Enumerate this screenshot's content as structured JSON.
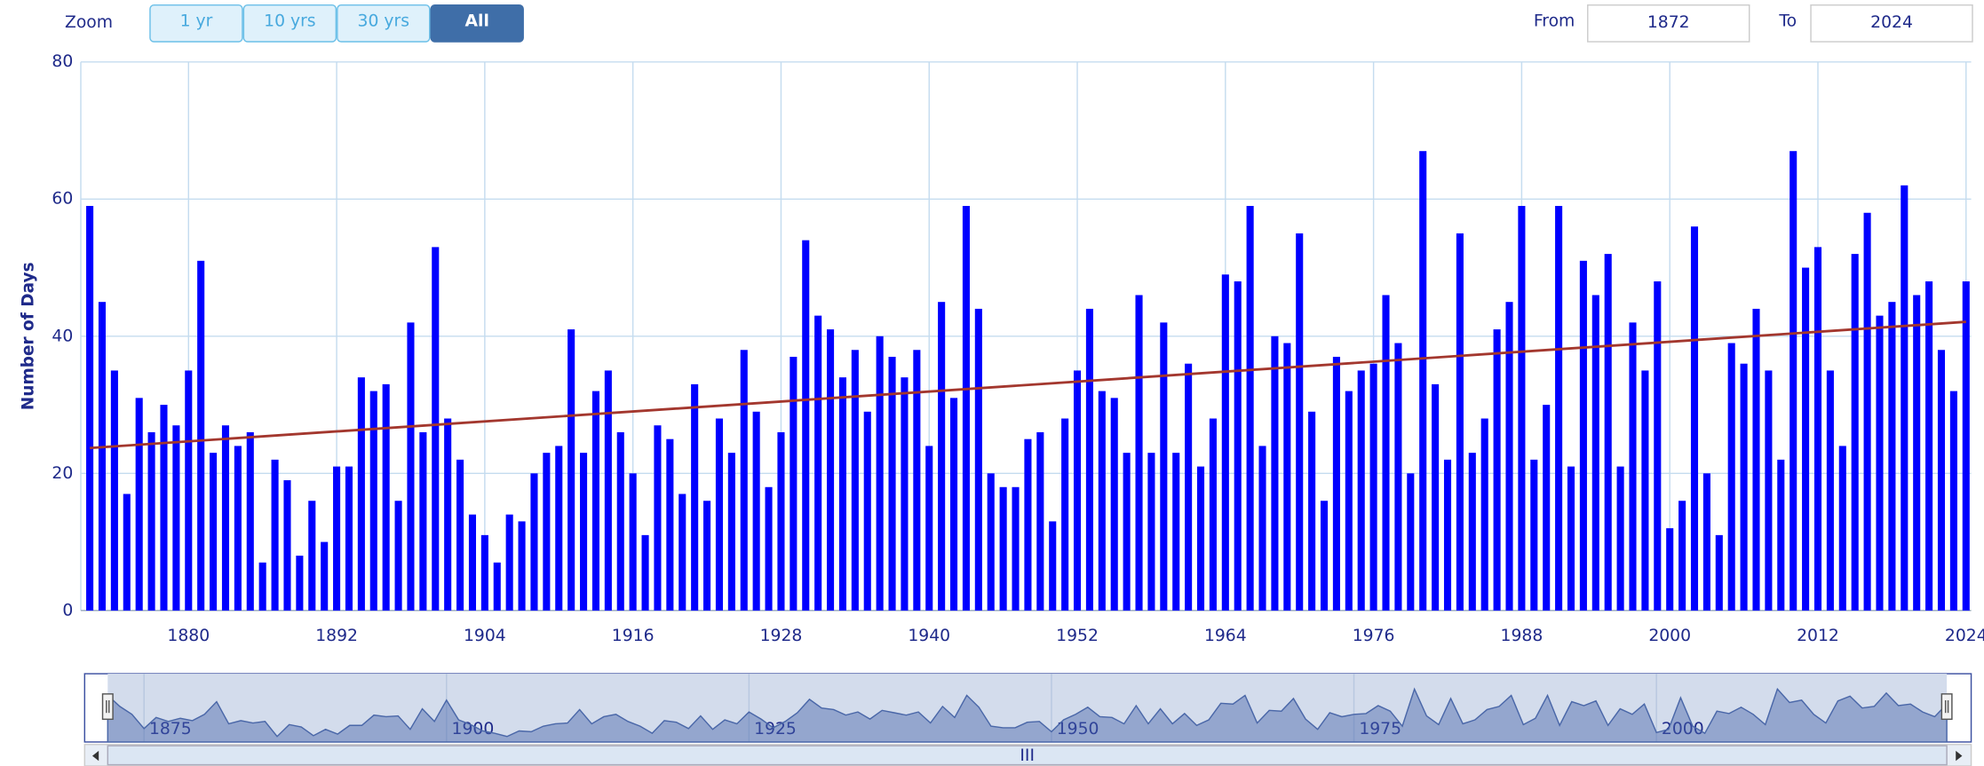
{
  "zoom": {
    "label": "Zoom",
    "buttons": [
      "1 yr",
      "10 yrs",
      "30 yrs",
      "All"
    ],
    "selected": 3
  },
  "range": {
    "from_label": "From",
    "from": "1872",
    "to_label": "To",
    "to": "2024"
  },
  "chart_data": {
    "type": "bar",
    "ylabel": "Number of Days",
    "x": [
      1872,
      1873,
      1874,
      1875,
      1876,
      1877,
      1878,
      1879,
      1880,
      1881,
      1882,
      1883,
      1884,
      1885,
      1886,
      1887,
      1888,
      1889,
      1890,
      1891,
      1892,
      1893,
      1894,
      1895,
      1896,
      1897,
      1898,
      1899,
      1900,
      1901,
      1902,
      1903,
      1904,
      1905,
      1906,
      1907,
      1908,
      1909,
      1910,
      1911,
      1912,
      1913,
      1914,
      1915,
      1916,
      1917,
      1918,
      1919,
      1920,
      1921,
      1922,
      1923,
      1924,
      1925,
      1926,
      1927,
      1928,
      1929,
      1930,
      1931,
      1932,
      1933,
      1934,
      1935,
      1936,
      1937,
      1938,
      1939,
      1940,
      1941,
      1942,
      1943,
      1944,
      1945,
      1946,
      1947,
      1948,
      1949,
      1950,
      1951,
      1952,
      1953,
      1954,
      1955,
      1956,
      1957,
      1958,
      1959,
      1960,
      1961,
      1962,
      1963,
      1964,
      1965,
      1966,
      1967,
      1968,
      1969,
      1970,
      1971,
      1972,
      1973,
      1974,
      1975,
      1976,
      1977,
      1978,
      1979,
      1980,
      1981,
      1982,
      1983,
      1984,
      1985,
      1986,
      1987,
      1988,
      1989,
      1990,
      1991,
      1992,
      1993,
      1994,
      1995,
      1996,
      1997,
      1998,
      1999,
      2000,
      2001,
      2002,
      2003,
      2004,
      2005,
      2006,
      2007,
      2008,
      2009,
      2010,
      2011,
      2012,
      2013,
      2014,
      2015,
      2016,
      2017,
      2018,
      2019,
      2020,
      2021,
      2022,
      2023,
      2024
    ],
    "values": [
      59,
      45,
      35,
      17,
      31,
      26,
      30,
      27,
      35,
      51,
      23,
      27,
      24,
      26,
      7,
      22,
      19,
      8,
      16,
      10,
      21,
      21,
      34,
      32,
      33,
      16,
      42,
      26,
      53,
      28,
      22,
      14,
      11,
      7,
      14,
      13,
      20,
      23,
      24,
      41,
      23,
      32,
      35,
      26,
      20,
      11,
      27,
      25,
      17,
      33,
      16,
      28,
      23,
      38,
      29,
      18,
      26,
      37,
      54,
      43,
      41,
      34,
      38,
      29,
      40,
      37,
      34,
      38,
      24,
      45,
      31,
      59,
      44,
      20,
      18,
      18,
      25,
      26,
      13,
      28,
      35,
      44,
      32,
      31,
      23,
      46,
      23,
      42,
      23,
      36,
      21,
      28,
      49,
      48,
      59,
      24,
      40,
      39,
      55,
      29,
      16,
      37,
      32,
      35,
      36,
      46,
      39,
      20,
      67,
      33,
      22,
      55,
      23,
      28,
      41,
      45,
      59,
      22,
      30,
      59,
      21,
      51,
      46,
      52,
      21,
      42,
      35,
      48,
      12,
      16,
      56,
      20,
      11,
      39,
      36,
      44,
      35,
      22,
      67,
      50,
      53,
      35,
      24,
      52,
      58,
      43,
      45,
      62,
      46,
      48,
      38,
      32,
      48
    ],
    "color": "#0000ff",
    "xlim": [
      1872,
      2024
    ],
    "ylim": [
      0,
      80
    ],
    "xticks": [
      1880,
      1892,
      1904,
      1916,
      1928,
      1940,
      1952,
      1964,
      1976,
      1988,
      2000,
      2012,
      2024
    ],
    "yticks": [
      0,
      20,
      40,
      60,
      80
    ],
    "grid": true,
    "trend": {
      "x": [
        1872,
        2024
      ],
      "values": [
        23.7,
        42.1
      ],
      "color": "#a3372e"
    },
    "navigator": {
      "xticks": [
        1875,
        1900,
        1925,
        1950,
        1975,
        2000
      ]
    }
  }
}
